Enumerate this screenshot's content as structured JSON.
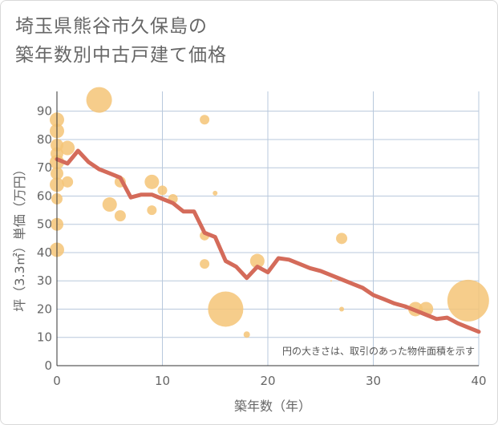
{
  "chart_data": {
    "type": "scatter",
    "title_lines": [
      "埼玉県熊谷市久保島の",
      "築年数別中古戸建て価格"
    ],
    "xlabel": "築年数（年）",
    "ylabel": "坪（3.3㎡）単価（万円）",
    "xlim": [
      0,
      40
    ],
    "ylim": [
      0,
      97
    ],
    "xticks": [
      0,
      10,
      20,
      30,
      40
    ],
    "yticks": [
      0,
      10,
      20,
      30,
      40,
      50,
      60,
      70,
      80,
      90
    ],
    "grid": true,
    "note": "円の大きさは、取引のあった物件面積を示す",
    "colors": {
      "bubble": "#f5c477",
      "line": "#d46b5a",
      "grid": "#b8c8dc",
      "axis": "#333333"
    },
    "bubbles": [
      {
        "x": 0,
        "y": 87,
        "s": 9
      },
      {
        "x": 0,
        "y": 83,
        "s": 9
      },
      {
        "x": 0,
        "y": 78,
        "s": 8
      },
      {
        "x": 0,
        "y": 75,
        "s": 8
      },
      {
        "x": 0,
        "y": 72,
        "s": 9
      },
      {
        "x": 0,
        "y": 68,
        "s": 8
      },
      {
        "x": 0,
        "y": 64,
        "s": 9
      },
      {
        "x": 0,
        "y": 59,
        "s": 7
      },
      {
        "x": 0,
        "y": 50,
        "s": 8
      },
      {
        "x": 0,
        "y": 41,
        "s": 9
      },
      {
        "x": 1,
        "y": 77,
        "s": 9
      },
      {
        "x": 1,
        "y": 65,
        "s": 7
      },
      {
        "x": 4,
        "y": 94,
        "s": 16
      },
      {
        "x": 5,
        "y": 57,
        "s": 9
      },
      {
        "x": 6,
        "y": 65,
        "s": 7
      },
      {
        "x": 6,
        "y": 53,
        "s": 7
      },
      {
        "x": 9,
        "y": 65,
        "s": 9
      },
      {
        "x": 9,
        "y": 55,
        "s": 6
      },
      {
        "x": 10,
        "y": 62,
        "s": 6
      },
      {
        "x": 11,
        "y": 59,
        "s": 6
      },
      {
        "x": 14,
        "y": 87,
        "s": 6
      },
      {
        "x": 14,
        "y": 46,
        "s": 6
      },
      {
        "x": 14,
        "y": 36,
        "s": 6
      },
      {
        "x": 15,
        "y": 61,
        "s": 3
      },
      {
        "x": 16,
        "y": 20,
        "s": 22
      },
      {
        "x": 18,
        "y": 11,
        "s": 4
      },
      {
        "x": 19,
        "y": 37,
        "s": 9
      },
      {
        "x": 26,
        "y": 30,
        "s": 1
      },
      {
        "x": 27,
        "y": 45,
        "s": 7
      },
      {
        "x": 27,
        "y": 20,
        "s": 3
      },
      {
        "x": 34,
        "y": 20,
        "s": 9
      },
      {
        "x": 35,
        "y": 20,
        "s": 9
      },
      {
        "x": 39,
        "y": 23,
        "s": 26
      }
    ],
    "trend": {
      "x": [
        0,
        1,
        2,
        3,
        4,
        5,
        6,
        7,
        8,
        9,
        10,
        11,
        12,
        13,
        14,
        15,
        16,
        17,
        18,
        19,
        20,
        21,
        22,
        23,
        24,
        25,
        26,
        27,
        28,
        29,
        30,
        31,
        32,
        33,
        34,
        35,
        36,
        37,
        38,
        39,
        40
      ],
      "y": [
        73,
        71.5,
        76,
        72,
        69.5,
        68,
        66.5,
        59.5,
        60.5,
        60.5,
        59,
        57.5,
        54.5,
        54.5,
        47,
        45.5,
        37,
        35,
        31,
        35,
        33,
        38,
        37.5,
        36,
        34.5,
        33.5,
        32,
        30.5,
        29,
        27.5,
        25,
        23.5,
        22,
        21,
        19.5,
        18,
        16.5,
        17,
        15,
        13.5,
        12
      ]
    }
  }
}
